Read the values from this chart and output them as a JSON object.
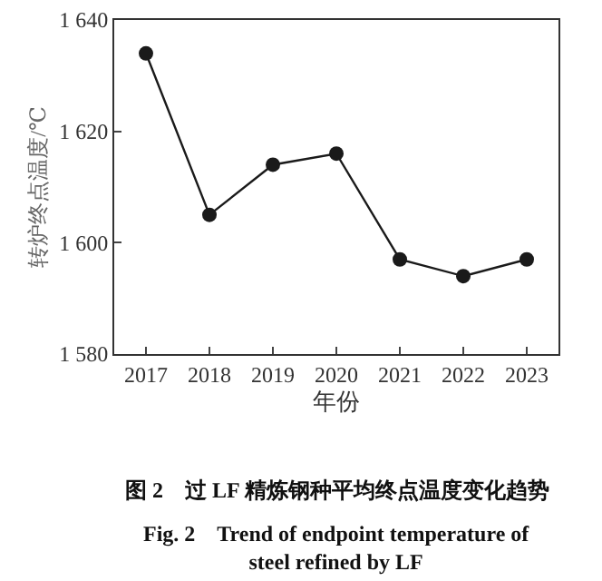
{
  "chart_data": {
    "type": "line",
    "title": "图 2　过 LF 精炼钢种平均终点温度变化趋势",
    "subtitle": "Fig. 2　Trend of endpoint temperature of steel refined by LF",
    "xlabel": "年份",
    "ylabel": "转炉终点温度/℃",
    "categories": [
      "2017",
      "2018",
      "2019",
      "2020",
      "2021",
      "2022",
      "2023"
    ],
    "series": [
      {
        "color": "#1a1a1a",
        "values": [
          1634,
          1605,
          1614,
          1616,
          1597,
          1594,
          1597
        ]
      }
    ],
    "ylim": [
      1580,
      1640
    ],
    "yticks": [
      {
        "value": 1580,
        "label": "1 580"
      },
      {
        "value": 1600,
        "label": "1 600"
      },
      {
        "value": 1620,
        "label": "1 620"
      },
      {
        "value": 1640,
        "label": "1 640"
      }
    ],
    "grid": false,
    "marker": "circle",
    "line_style": "solid"
  }
}
